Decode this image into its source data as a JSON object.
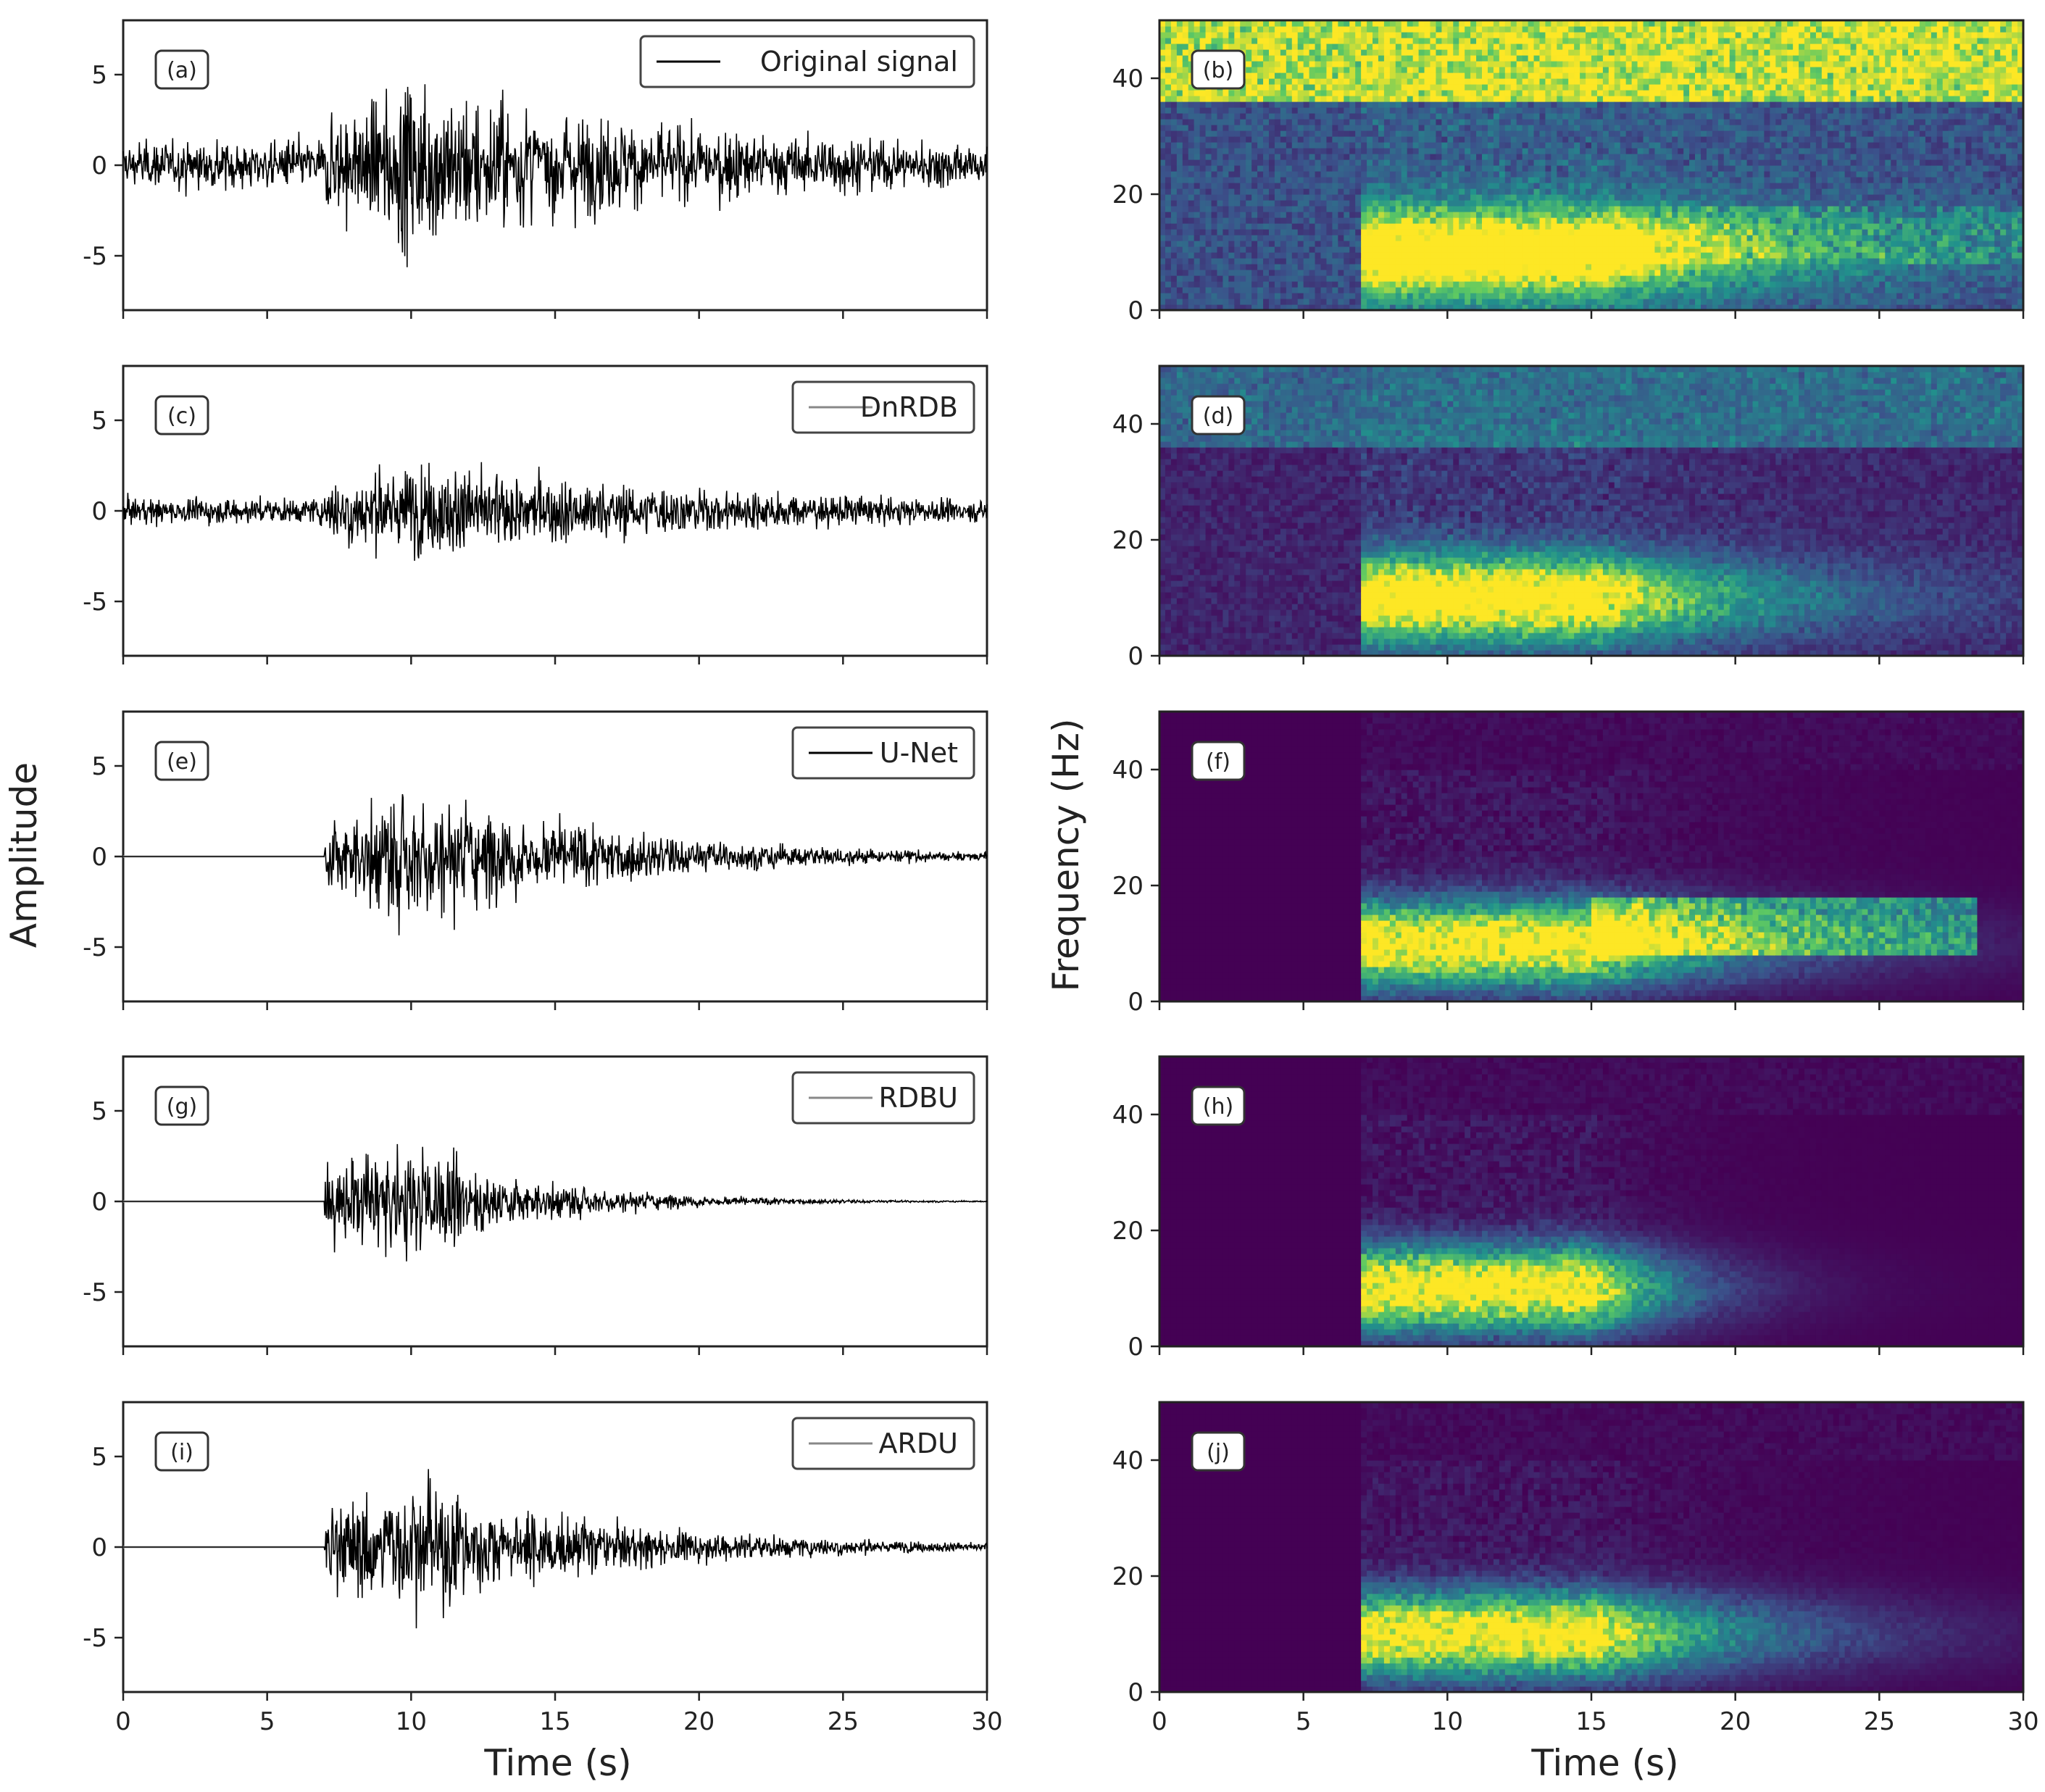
{
  "colors": {
    "waveform": "#000000",
    "flatline": "#bdbdbd",
    "spec_low": "#440154",
    "spec_mid": "#21918c",
    "spec_high": "#fde725",
    "axes": "#222222"
  },
  "figure": {
    "left_ylabel": "Amplitude",
    "right_ylabel": "Frequency (Hz)",
    "left_xlabel": "Time (s)",
    "right_xlabel": "Time (s)"
  },
  "chart_data": [
    {
      "id": "a",
      "type": "line",
      "tag": "(a)",
      "legend": "Original signal",
      "xlim": [
        0,
        30
      ],
      "ylim": [
        -8,
        8
      ],
      "xticks": [
        0,
        5,
        10,
        15,
        20,
        25,
        30
      ],
      "yticks": [
        -5,
        0,
        5
      ],
      "onset": 0,
      "peak": 6.5,
      "noise_floor": 1.5,
      "decay": "slow",
      "env_peak_time": 10
    },
    {
      "id": "b",
      "type": "heatmap",
      "tag": "(b)",
      "xlim": [
        0,
        30
      ],
      "ylim": [
        0,
        50
      ],
      "xticks": [
        0,
        5,
        10,
        15,
        20,
        25,
        30
      ],
      "yticks": [
        0,
        20,
        40
      ],
      "variant": "original"
    },
    {
      "id": "c",
      "type": "line",
      "tag": "(c)",
      "legend": "DnRDB",
      "xlim": [
        0,
        30
      ],
      "ylim": [
        -8,
        8
      ],
      "xticks": [
        0,
        5,
        10,
        15,
        20,
        25,
        30
      ],
      "yticks": [
        -5,
        0,
        5
      ],
      "onset": 0,
      "peak": 3.9,
      "noise_floor": 0.5,
      "decay": "slow",
      "env_peak_time": 10
    },
    {
      "id": "d",
      "type": "heatmap",
      "tag": "(d)",
      "xlim": [
        0,
        30
      ],
      "ylim": [
        0,
        50
      ],
      "xticks": [
        0,
        5,
        10,
        15,
        20,
        25,
        30
      ],
      "yticks": [
        0,
        20,
        40
      ],
      "variant": "dnrdb"
    },
    {
      "id": "e",
      "type": "line",
      "tag": "(e)",
      "legend": "U-Net",
      "xlim": [
        0,
        30
      ],
      "ylim": [
        -8,
        8
      ],
      "xticks": [
        0,
        5,
        10,
        15,
        20,
        25,
        30
      ],
      "yticks": [
        -5,
        0,
        5
      ],
      "onset": 7,
      "peak": 5.6,
      "noise_floor": 0,
      "decay": "medium",
      "env_peak_time": 10
    },
    {
      "id": "f",
      "type": "heatmap",
      "tag": "(f)",
      "xlim": [
        0,
        30
      ],
      "ylim": [
        0,
        50
      ],
      "xticks": [
        0,
        5,
        10,
        15,
        20,
        25,
        30
      ],
      "yticks": [
        0,
        20,
        40
      ],
      "variant": "unet"
    },
    {
      "id": "g",
      "type": "line",
      "tag": "(g)",
      "legend": "RDBU",
      "xlim": [
        0,
        30
      ],
      "ylim": [
        -8,
        8
      ],
      "xticks": [
        0,
        5,
        10,
        15,
        20,
        25,
        30
      ],
      "yticks": [
        -5,
        0,
        5
      ],
      "onset": 7,
      "peak": 4.8,
      "noise_floor": 0,
      "decay": "fast",
      "env_peak_time": 10
    },
    {
      "id": "h",
      "type": "heatmap",
      "tag": "(h)",
      "xlim": [
        0,
        30
      ],
      "ylim": [
        0,
        50
      ],
      "xticks": [
        0,
        5,
        10,
        15,
        20,
        25,
        30
      ],
      "yticks": [
        0,
        20,
        40
      ],
      "variant": "rdbu"
    },
    {
      "id": "i",
      "type": "line",
      "tag": "(i)",
      "legend": "ARDU",
      "xlim": [
        0,
        30
      ],
      "ylim": [
        -8,
        8
      ],
      "xticks": [
        0,
        5,
        10,
        15,
        20,
        25,
        30
      ],
      "yticks": [
        -5,
        0,
        5
      ],
      "onset": 7,
      "peak": 5.3,
      "noise_floor": 0,
      "decay": "medium",
      "env_peak_time": 10
    },
    {
      "id": "j",
      "type": "heatmap",
      "tag": "(j)",
      "xlim": [
        0,
        30
      ],
      "ylim": [
        0,
        50
      ],
      "xticks": [
        0,
        5,
        10,
        15,
        20,
        25,
        30
      ],
      "yticks": [
        0,
        20,
        40
      ],
      "variant": "ardu"
    }
  ]
}
